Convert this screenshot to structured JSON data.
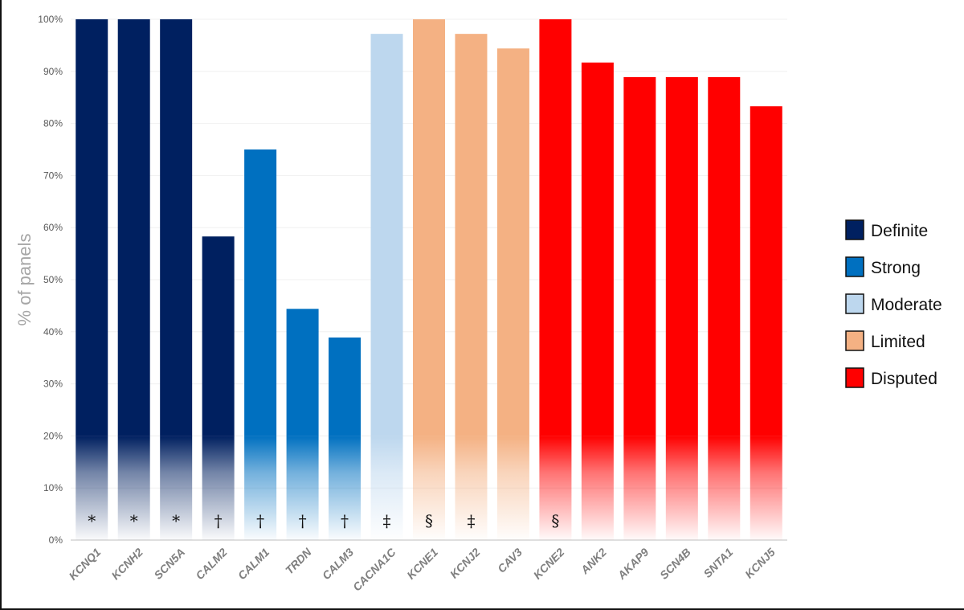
{
  "chart_data": {
    "type": "bar",
    "ylabel": "% of panels",
    "ylim": [
      0,
      100
    ],
    "yticks": [
      "0%",
      "10%",
      "20%",
      "30%",
      "40%",
      "50%",
      "60%",
      "70%",
      "80%",
      "90%",
      "100%"
    ],
    "grid": true,
    "legend_position": "right",
    "categories": [
      "KCNQ1",
      "KCNH2",
      "SCN5A",
      "CALM2",
      "CALM1",
      "TRDN",
      "CALM3",
      "CACNA1C",
      "KCNE1",
      "KCNJ2",
      "CAV3",
      "KCNE2",
      "ANK2",
      "AKAP9",
      "SCN4B",
      "SNTA1",
      "KCNJ5"
    ],
    "values": [
      100,
      100,
      100,
      58.3,
      75,
      44.4,
      38.9,
      97.2,
      100,
      97.2,
      94.4,
      100,
      91.7,
      88.9,
      88.9,
      88.9,
      83.3
    ],
    "classifications": [
      "Definite",
      "Definite",
      "Definite",
      "Definite",
      "Strong",
      "Strong",
      "Strong",
      "Moderate",
      "Limited",
      "Limited",
      "Limited",
      "Disputed",
      "Disputed",
      "Disputed",
      "Disputed",
      "Disputed",
      "Disputed"
    ],
    "markers": [
      "*",
      "*",
      "*",
      "†",
      "†",
      "†",
      "†",
      "‡",
      "§",
      "‡",
      "",
      "§",
      "",
      "",
      "",
      "",
      ""
    ],
    "legend": [
      {
        "label": "Definite",
        "color": "#002060"
      },
      {
        "label": "Strong",
        "color": "#0070c0"
      },
      {
        "label": "Moderate",
        "color": "#bdd7ee"
      },
      {
        "label": "Limited",
        "color": "#f4b183"
      },
      {
        "label": "Disputed",
        "color": "#ff0000"
      }
    ]
  }
}
